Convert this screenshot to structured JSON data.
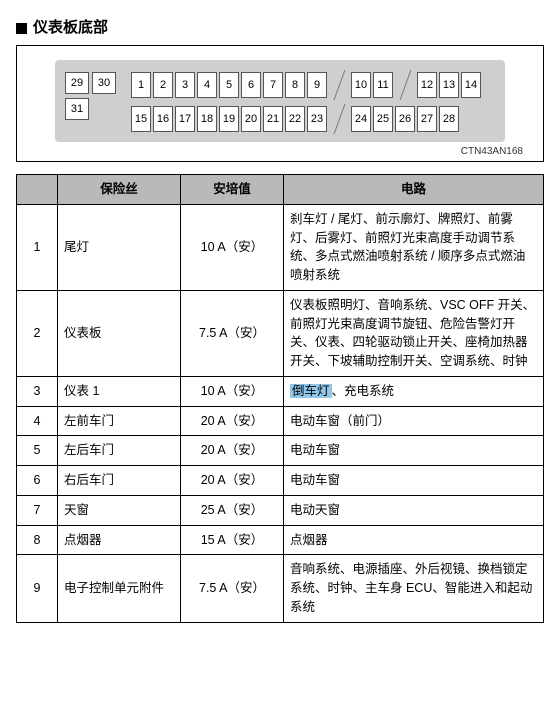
{
  "title": "仪表板底部",
  "diagram_code": "CTN43AN168",
  "diagram": {
    "left_top": [
      "29",
      "30"
    ],
    "left_bottom": [
      "31"
    ],
    "row1": [
      "1",
      "2",
      "3",
      "4",
      "5",
      "6",
      "7",
      "8",
      "9",
      "",
      "10",
      "11",
      "",
      "12",
      "13",
      "14"
    ],
    "row2": [
      "15",
      "16",
      "17",
      "18",
      "19",
      "20",
      "21",
      "22",
      "23",
      "",
      "24",
      "25",
      "26",
      "27",
      "28"
    ]
  },
  "headers": {
    "col1": "",
    "col2": "保险丝",
    "col3": "安培值",
    "col4": "电路"
  },
  "rows": [
    {
      "num": "1",
      "name": "尾灯",
      "amp": "10 A（安）",
      "circuit": "刹车灯 / 尾灯、前示廓灯、牌照灯、前雾灯、后雾灯、前照灯光束高度手动调节系统、多点式燃油喷射系统 / 顺序多点式燃油喷射系统"
    },
    {
      "num": "2",
      "name": "仪表板",
      "amp": "7.5 A（安）",
      "circuit": "仪表板照明灯、音响系统、VSC OFF 开关、前照灯光束高度调节旋钮、危险告警灯开关、仪表、四轮驱动锁止开关、座椅加热器开关、下坡辅助控制开关、空调系统、时钟"
    },
    {
      "num": "3",
      "name": "仪表 1",
      "amp": "10 A（安）",
      "circuit_pre": "",
      "highlight": "倒车灯",
      "circuit_post": "、充电系统"
    },
    {
      "num": "4",
      "name": "左前车门",
      "amp": "20 A（安）",
      "circuit": "电动车窗（前门）"
    },
    {
      "num": "5",
      "name": "左后车门",
      "amp": "20 A（安）",
      "circuit": "电动车窗"
    },
    {
      "num": "6",
      "name": "右后车门",
      "amp": "20 A（安）",
      "circuit": "电动车窗"
    },
    {
      "num": "7",
      "name": "天窗",
      "amp": "25 A（安）",
      "circuit": "电动天窗"
    },
    {
      "num": "8",
      "name": "点烟器",
      "amp": "15 A（安）",
      "circuit": "点烟器"
    },
    {
      "num": "9",
      "name": "电子控制单元附件",
      "amp": "7.5 A（安）",
      "circuit": "音响系统、电源插座、外后视镜、换档锁定系统、时钟、主车身 ECU、智能进入和起动系统"
    }
  ]
}
